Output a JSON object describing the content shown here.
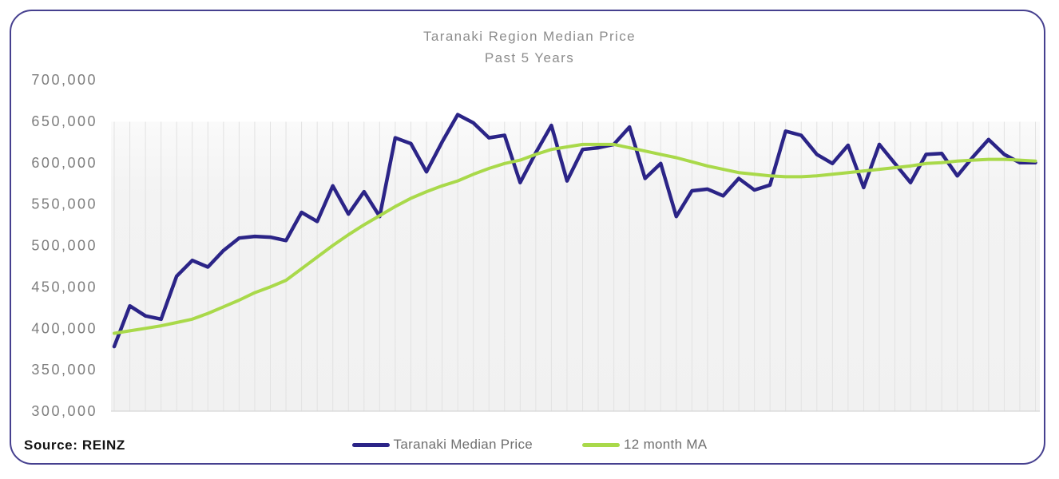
{
  "card": {
    "border_color": "#46408f"
  },
  "chart": {
    "title": "Taranaki Region Median Price",
    "subtitle": "Past 5 Years",
    "title_color": "#8c8c8c"
  },
  "legend": [
    {
      "label": "Taranaki Median Price",
      "color": "#2b2487"
    },
    {
      "label": "12 month MA",
      "color": "#a9d94a"
    }
  ],
  "footer": {
    "source": "Source: REINZ"
  },
  "chart_data": {
    "type": "line",
    "title": "Taranaki Region Median Price",
    "subtitle": "Past 5 Years",
    "x_unit": "months (past 5 years, monthly points, no x-axis labels shown)",
    "xlabel": "",
    "ylabel": "",
    "ylim": [
      300000,
      700000
    ],
    "grid": "vertical monthly gridlines only",
    "legend_position": "bottom-center",
    "plot_bg": "#f3f3f3",
    "gridline_color": "#e2e2e2",
    "axis_line_color": "#d6d6d6",
    "tick_label_color": "#7d7d7d",
    "y_ticks": [
      {
        "label": "700,000",
        "value": 700000
      },
      {
        "label": "650,000",
        "value": 650000
      },
      {
        "label": "600,000",
        "value": 600000
      },
      {
        "label": "550,000",
        "value": 550000
      },
      {
        "label": "500,000",
        "value": 500000
      },
      {
        "label": "450,000",
        "value": 450000
      },
      {
        "label": "400,000",
        "value": 400000
      },
      {
        "label": "350,000",
        "value": 350000
      },
      {
        "label": "300,000",
        "value": 300000
      }
    ],
    "series": [
      {
        "name": "Taranaki Median Price",
        "color": "#2b2487",
        "stroke_width": 4.5,
        "values": [
          378000,
          427000,
          415000,
          411000,
          463000,
          482000,
          474000,
          494000,
          509000,
          511000,
          510000,
          506000,
          540000,
          529000,
          572000,
          538000,
          565000,
          535000,
          630000,
          623000,
          589000,
          625000,
          658000,
          648000,
          630000,
          633000,
          576000,
          612000,
          645000,
          578000,
          616000,
          618000,
          622000,
          643000,
          581000,
          599000,
          535000,
          566000,
          568000,
          560000,
          581000,
          567000,
          573000,
          638000,
          633000,
          610000,
          599000,
          621000,
          570000,
          622000,
          599000,
          576000,
          610000,
          611000,
          584000,
          607000,
          628000,
          610000,
          600000,
          600000
        ]
      },
      {
        "name": "12 month MA",
        "color": "#a9d94a",
        "stroke_width": 4,
        "values": [
          394000,
          397000,
          400000,
          403000,
          407000,
          411000,
          418000,
          426000,
          434000,
          443000,
          450000,
          458000,
          472000,
          486000,
          500000,
          513000,
          525000,
          536000,
          547000,
          557000,
          565000,
          572000,
          578000,
          586000,
          593000,
          599000,
          603000,
          610000,
          616000,
          619000,
          622000,
          622000,
          622000,
          618000,
          614000,
          610000,
          606000,
          601000,
          596000,
          592000,
          588000,
          586000,
          584000,
          583000,
          583000,
          584000,
          586000,
          588000,
          590000,
          592000,
          594000,
          596000,
          599000,
          600000,
          602000,
          603000,
          604000,
          604000,
          603000,
          602000
        ]
      }
    ]
  }
}
